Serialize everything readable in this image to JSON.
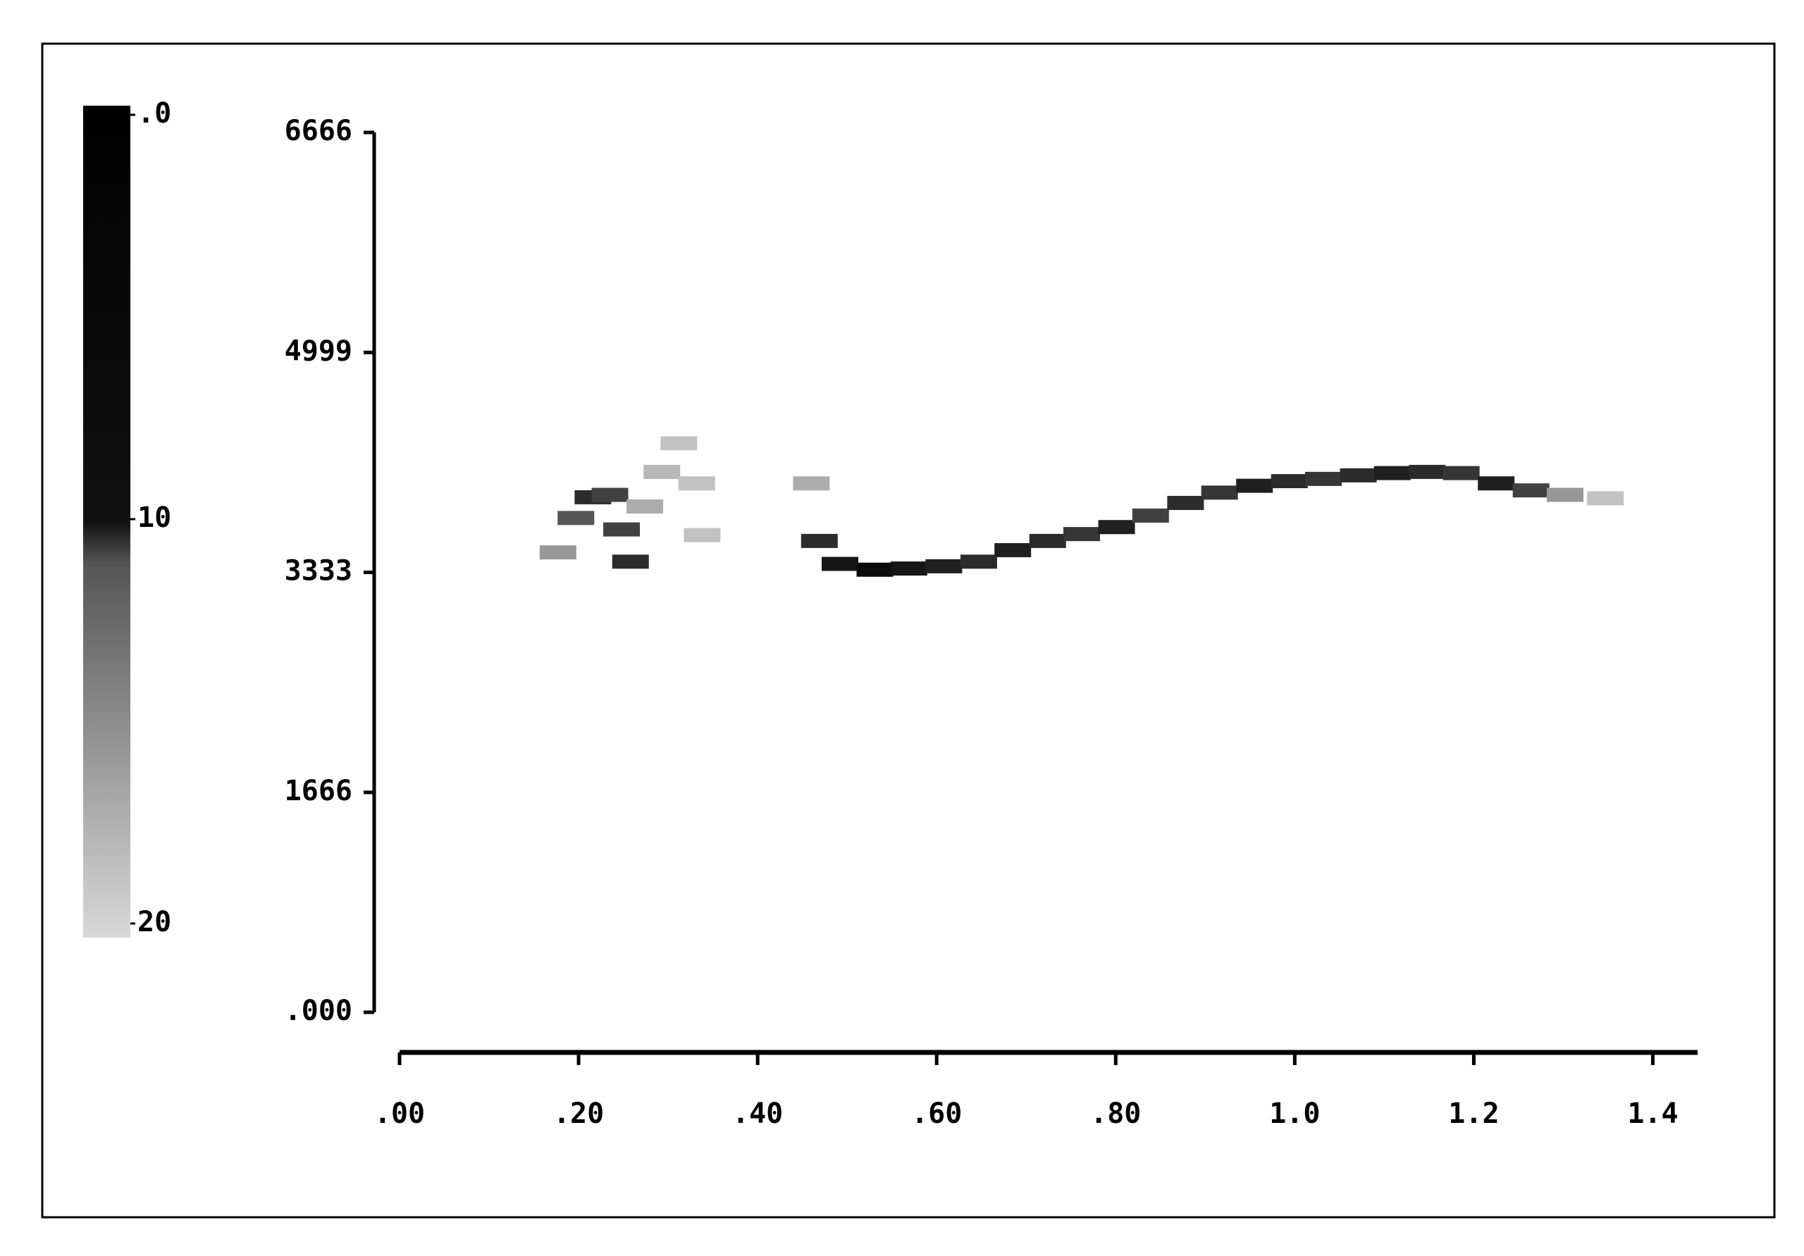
{
  "chart_data": {
    "type": "scatter",
    "x": [
      0.177,
      0.197,
      0.216,
      0.235,
      0.248,
      0.258,
      0.274,
      0.293,
      0.312,
      0.332,
      0.338,
      0.46,
      0.469,
      0.492,
      0.531,
      0.569,
      0.608,
      0.647,
      0.685,
      0.724,
      0.762,
      0.801,
      0.839,
      0.878,
      0.916,
      0.955,
      0.994,
      1.032,
      1.071,
      1.109,
      1.148,
      1.186,
      1.225,
      1.264,
      1.302,
      1.347
    ],
    "values": [
      3484,
      3745,
      3902,
      3920,
      3658,
      3414,
      3832,
      4094,
      4311,
      4007,
      3615,
      4007,
      3571,
      3397,
      3353,
      3362,
      3379,
      3414,
      3501,
      3571,
      3623,
      3676,
      3763,
      3859,
      3937,
      3989,
      4024,
      4041,
      4068,
      4085,
      4094,
      4085,
      4007,
      3954,
      3920,
      3894
    ],
    "intensity": [
      14,
      8,
      4,
      6,
      6,
      4,
      16,
      17,
      18,
      18,
      18,
      16,
      4,
      2,
      1,
      2,
      3,
      4,
      3,
      4,
      5,
      3,
      6,
      4,
      5,
      3,
      4,
      5,
      4,
      3,
      4,
      5,
      3,
      6,
      14,
      18
    ],
    "xlim": [
      0,
      1.45
    ],
    "ylim": [
      0,
      6666
    ],
    "xticks": [
      {
        "value": 0,
        "label": ".00"
      },
      {
        "value": 0.2,
        "label": ".20"
      },
      {
        "value": 0.4,
        "label": ".40"
      },
      {
        "value": 0.6,
        "label": ".60"
      },
      {
        "value": 0.8,
        "label": ".80"
      },
      {
        "value": 1,
        "label": "1.0"
      },
      1.2,
      1.4
    ],
    "yticks": [
      {
        "value": 0,
        "label": ".000"
      },
      1666,
      3333,
      4999,
      6666
    ],
    "zlim": [
      0,
      20
    ],
    "zticks": [
      {
        "value": 0,
        "label": ".0"
      },
      10,
      20
    ]
  }
}
